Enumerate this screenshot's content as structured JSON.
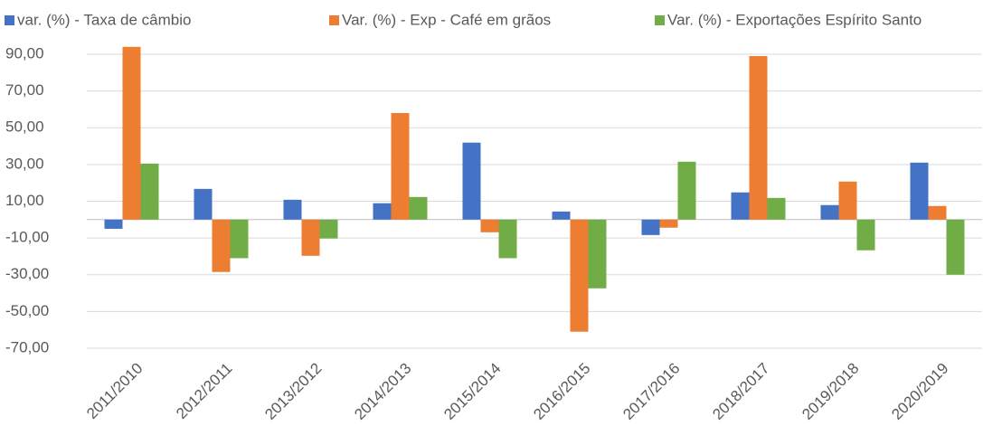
{
  "chart_data": {
    "type": "bar",
    "categories": [
      "2011/2010",
      "2012/2011",
      "2013/2012",
      "2014/2013",
      "2015/2014",
      "2016/2015",
      "2017/2016",
      "2018/2017",
      "2019/2018",
      "2020/2019"
    ],
    "series": [
      {
        "name": "var. (%) - Taxa de câmbio",
        "color": "#4472c4",
        "values": [
          -5,
          16.7,
          10.8,
          8.9,
          41.9,
          4.4,
          -8.4,
          14.8,
          7.9,
          31
        ]
      },
      {
        "name": "Var. (%) - Exp - Café em grãos",
        "color": "#ed7d31",
        "values": [
          94,
          -28.5,
          -19.7,
          58,
          -6.9,
          -61,
          -4.4,
          89,
          20.7,
          7.4
        ]
      },
      {
        "name": "Var. (%) - Exportações Espírito Santo",
        "color": "#70ad47",
        "values": [
          30.5,
          -21,
          -10.3,
          12.3,
          -21,
          -37.4,
          31.5,
          11.8,
          -16.7,
          -30
        ]
      }
    ],
    "ylim": [
      -70,
      95
    ],
    "yticks": [
      {
        "value": 90,
        "label": "90,00"
      },
      {
        "value": 70,
        "label": "70,00"
      },
      {
        "value": 50,
        "label": "50,00"
      },
      {
        "value": 30,
        "label": "30,00"
      },
      {
        "value": 10,
        "label": "10,00"
      },
      {
        "value": -10,
        "label": "-10,00"
      },
      {
        "value": -30,
        "label": "-30,00"
      },
      {
        "value": -50,
        "label": "-50,00"
      },
      {
        "value": -70,
        "label": "-70,00"
      }
    ],
    "grid": true,
    "legend": "top"
  }
}
